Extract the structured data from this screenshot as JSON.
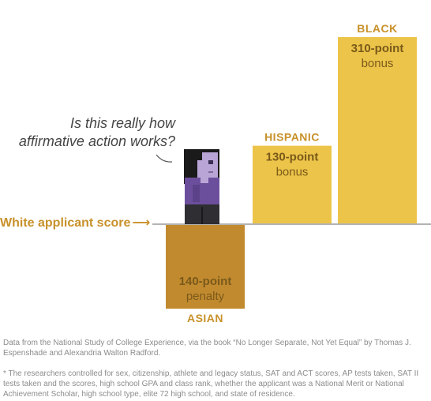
{
  "chart_data": {
    "type": "bar",
    "categories": [
      "ASIAN",
      "HISPANIC",
      "BLACK"
    ],
    "values": [
      -140,
      130,
      310
    ],
    "bar_labels": [
      {
        "amount": "140-point",
        "kind": "penalty"
      },
      {
        "amount": "130-point",
        "kind": "bonus"
      },
      {
        "amount": "310-point",
        "kind": "bonus"
      }
    ],
    "baseline_label": "White applicant score",
    "colors": {
      "asian": "#c28a2f",
      "hispanic": "#ecc449",
      "black": "#ecc449",
      "category_text": "#c8912a",
      "bar_text": "#7a5a1a",
      "baseline": "#b3b3b3"
    }
  },
  "annotation": {
    "line1": "Is this really how",
    "line2": "affirmative action works?"
  },
  "source": "Data from the National Study of College Experience, via the book “No Longer Separate, Not Yet Equal” by Thomas J. Espenshade and Alexandria Walton Radford.",
  "footnote": "* The researchers controlled for sex, citizenship, athlete and legacy status, SAT and ACT scores, AP tests taken, SAT II tests taken and the scores, high school GPA and class rank, whether the applicant was a National Merit or National Achievement Scholar, high school type, elite 72 high school, and state of residence.",
  "figure": {
    "icon": "student-figure-icon",
    "hair": "#1a1a1a",
    "skin": "#b9a6d6",
    "shirt": "#6c4f9c",
    "pants": "#2e2e33"
  }
}
